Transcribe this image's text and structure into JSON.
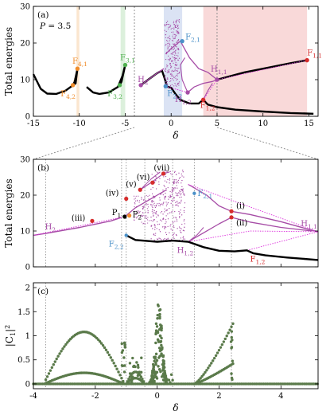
{
  "colors": {
    "black": "#000000",
    "magenta": "#a64ca6",
    "bright_magenta": "#dd33dd",
    "orange": "#f08c2a",
    "green": "#4fb04f",
    "blue": "#4a90c8",
    "red": "#d62c2c",
    "gray": "#888888",
    "scatter": "#5a7a4a",
    "band_orange": "#fbe6cf",
    "band_green": "#dcf0dc",
    "band_blue": "#dbe3f4",
    "band_red": "#f9d9d9"
  },
  "chart_data": [
    {
      "panel": "(a)",
      "type": "line",
      "xlabel": "δ",
      "ylabel": "Total energies",
      "xlim": [
        -15,
        16
      ],
      "ylim": [
        0,
        30
      ],
      "xticks": [
        -15,
        -10,
        -5,
        0,
        5,
        10,
        15
      ],
      "yticks": [
        0,
        10,
        20,
        30
      ],
      "parameter_label": "P = 3.5",
      "shaded_bands": [
        {
          "x": [
            -10.3,
            -10.0
          ],
          "color": "orange"
        },
        {
          "x": [
            -5.5,
            -5.0
          ],
          "color": "green"
        },
        {
          "x": [
            -0.8,
            1.2
          ],
          "color": "blue"
        },
        {
          "x": [
            3.5,
            14.8
          ],
          "color": "red"
        }
      ],
      "series": [
        {
          "points": [
            [
              -15,
              11.5
            ],
            [
              -14.2,
              7.5
            ],
            [
              -13.5,
              6.2
            ],
            [
              -12.5,
              6.1
            ],
            [
              -11.5,
              7.0
            ],
            [
              -10.4,
              9.0
            ],
            [
              -10.2,
              13.0
            ]
          ]
        },
        {
          "points": [
            [
              -10.2,
              13.0
            ],
            [
              -10.5,
              9.5
            ],
            [
              -10.7,
              8.5
            ]
          ]
        },
        {
          "points": [
            [
              -9.2,
              8.0
            ],
            [
              -8.5,
              6.5
            ],
            [
              -7.8,
              6.1
            ],
            [
              -6.8,
              6.5
            ],
            [
              -5.8,
              8.0
            ],
            [
              -5.3,
              11.0
            ],
            [
              -5.0,
              14.0
            ]
          ]
        },
        {
          "points": [
            [
              -5.0,
              14.0
            ],
            [
              -5.4,
              9.5
            ],
            [
              -5.6,
              8.5
            ]
          ]
        },
        {
          "points": [
            [
              -3.3,
              8.5
            ],
            [
              -2.5,
              10.0
            ],
            [
              -1.5,
              11.8
            ],
            [
              -1.0,
              12.5
            ],
            [
              -0.6,
              9.5
            ],
            [
              -0.5,
              8.5
            ]
          ]
        },
        {
          "points": [
            [
              -0.6,
              8.2
            ],
            [
              0.0,
              7.8
            ],
            [
              0.5,
              6.0
            ],
            [
              1.0,
              4.5
            ],
            [
              2.0,
              3.5
            ],
            [
              3.0,
              3.5
            ],
            [
              3.5,
              4.5
            ]
          ]
        },
        {
          "points": [
            [
              3.5,
              4.5
            ],
            [
              4.0,
              3.2
            ],
            [
              5.0,
              2.5
            ],
            [
              7.0,
              1.8
            ],
            [
              10.0,
              1.3
            ],
            [
              13.0,
              0.9
            ],
            [
              15.5,
              0.7
            ]
          ]
        },
        {
          "points": [
            [
              5.0,
              10.0
            ],
            [
              8.0,
              12.0
            ],
            [
              11.0,
              13.5
            ],
            [
              13.0,
              14.5
            ],
            [
              14.8,
              15.3
            ]
          ]
        }
      ],
      "labels": [
        {
          "text": "F4,1",
          "x": -10.2,
          "y": 13.0,
          "color": "orange"
        },
        {
          "text": "F4,2",
          "x": -10.7,
          "y": 8.5,
          "color": "orange"
        },
        {
          "text": "F3,1",
          "x": -5.0,
          "y": 14.0,
          "color": "green"
        },
        {
          "text": "F3,2",
          "x": -5.6,
          "y": 8.5,
          "color": "green"
        },
        {
          "text": "H2",
          "x": -3.3,
          "y": 8.5,
          "color": "magenta"
        },
        {
          "text": "F2,2",
          "x": -0.6,
          "y": 8.2,
          "color": "blue"
        },
        {
          "text": "F2,1",
          "x": 1.2,
          "y": 20.5,
          "color": "blue"
        },
        {
          "text": "H1,2",
          "x": 1.8,
          "y": 6.5,
          "color": "magenta"
        },
        {
          "text": "H1,1",
          "x": 5.0,
          "y": 10.0,
          "color": "magenta"
        },
        {
          "text": "F1,2",
          "x": 3.5,
          "y": 4.5,
          "color": "red"
        },
        {
          "text": "F1,1",
          "x": 14.8,
          "y": 15.3,
          "color": "red"
        }
      ]
    },
    {
      "panel": "(b)",
      "type": "line",
      "ylabel": "Total energies",
      "xlim": [
        -4,
        5.2
      ],
      "ylim": [
        0,
        30
      ],
      "yticks": [
        0,
        10,
        20,
        30
      ],
      "series": [
        {
          "points": [
            [
              -4,
              8.8
            ],
            [
              -3.6,
              9.3
            ],
            [
              -2.5,
              11.0
            ],
            [
              -1.5,
              12.8
            ],
            [
              -1.15,
              13.8
            ]
          ]
        },
        {
          "points": [
            [
              -1.0,
              8.8
            ],
            [
              -0.7,
              7.5
            ],
            [
              0.0,
              7.0
            ],
            [
              0.5,
              7.3
            ],
            [
              1.0,
              7.0
            ]
          ]
        },
        {
          "points": [
            [
              1.0,
              7.0
            ],
            [
              1.5,
              5.5
            ],
            [
              2.0,
              4.5
            ],
            [
              2.5,
              4.3
            ],
            [
              2.9,
              4.6
            ],
            [
              3.1,
              3.8
            ],
            [
              3.5,
              3.2
            ],
            [
              4.2,
              2.6
            ],
            [
              5.2,
              1.9
            ]
          ]
        },
        {
          "points": [
            [
              2.4,
              15.5
            ],
            [
              3.0,
              14.6
            ],
            [
              4.0,
              12.6
            ],
            [
              5.0,
              10.2
            ],
            [
              5.2,
              9.8
            ]
          ]
        },
        {
          "points": [
            [
              2.4,
              13.8
            ],
            [
              3.0,
              12.5
            ],
            [
              4.0,
              11.0
            ],
            [
              5.0,
              10.0
            ]
          ]
        },
        {
          "points": [
            [
              -1.05,
              14.0
            ],
            [
              -0.7,
              16.5
            ],
            [
              -0.3,
              18.5
            ],
            [
              0.0,
              20.0
            ],
            [
              0.3,
              21.5
            ]
          ]
        }
      ],
      "labels": [
        {
          "text": "H2",
          "x": -3.6,
          "y": 9.3,
          "color": "magenta"
        },
        {
          "text": "(iii)",
          "x": -2.1,
          "y": 12.0,
          "color": "black"
        },
        {
          "text": "P1",
          "x": -1.05,
          "y": 14.0,
          "color": "black"
        },
        {
          "text": "P2",
          "x": -0.9,
          "y": 14.3,
          "color": "black"
        },
        {
          "text": "(iv)",
          "x": -1.0,
          "y": 19.0,
          "color": "black"
        },
        {
          "text": "(v)",
          "x": -0.5,
          "y": 21.5,
          "color": "black"
        },
        {
          "text": "(vi)",
          "x": -0.1,
          "y": 23.5,
          "color": "black"
        },
        {
          "text": "(vii)",
          "x": 0.25,
          "y": 26.0,
          "color": "black"
        },
        {
          "text": "F2,1",
          "x": 1.2,
          "y": 20.5,
          "color": "blue"
        },
        {
          "text": "F2,2",
          "x": -1.0,
          "y": 8.8,
          "color": "blue"
        },
        {
          "text": "(i)",
          "x": 2.4,
          "y": 15.5,
          "color": "black"
        },
        {
          "text": "(ii)",
          "x": 2.4,
          "y": 13.8,
          "color": "black"
        },
        {
          "text": "H1,1",
          "x": 5.0,
          "y": 10.0,
          "color": "magenta"
        },
        {
          "text": "H1,2",
          "x": 1.0,
          "y": 7.0,
          "color": "magenta"
        },
        {
          "text": "F1,2",
          "x": 2.9,
          "y": 4.6,
          "color": "red"
        }
      ],
      "markers": [
        {
          "x": -2.1,
          "y": 12.8,
          "color": "red"
        },
        {
          "x": -1.05,
          "y": 14.0,
          "color": "black"
        },
        {
          "x": -0.9,
          "y": 14.3,
          "color": "orange"
        },
        {
          "x": -1.0,
          "y": 19.0,
          "color": "red"
        },
        {
          "x": -0.55,
          "y": 21.5,
          "color": "red"
        },
        {
          "x": -0.15,
          "y": 23.5,
          "color": "red"
        },
        {
          "x": 0.2,
          "y": 26.0,
          "color": "red"
        },
        {
          "x": 2.4,
          "y": 15.5,
          "color": "red"
        },
        {
          "x": 2.4,
          "y": 13.8,
          "color": "red"
        }
      ],
      "guide_lines_x": [
        -3.6,
        -1.15,
        -1.0,
        -0.4,
        0.5,
        1.2,
        2.4
      ]
    },
    {
      "panel": "(c)",
      "type": "scatter",
      "xlabel": "δ",
      "ylabel": "|C1|²",
      "xlim": [
        -4,
        5.2
      ],
      "ylim": [
        -0.1,
        2.1
      ],
      "xticks": [
        -4,
        -2,
        0,
        2,
        4
      ],
      "yticks": [
        0,
        0.5,
        1,
        1.5,
        2
      ],
      "guide_lines_x": [
        -3.6,
        -1.15,
        -1.0,
        -0.4,
        0.5,
        1.2,
        2.4
      ]
    }
  ]
}
